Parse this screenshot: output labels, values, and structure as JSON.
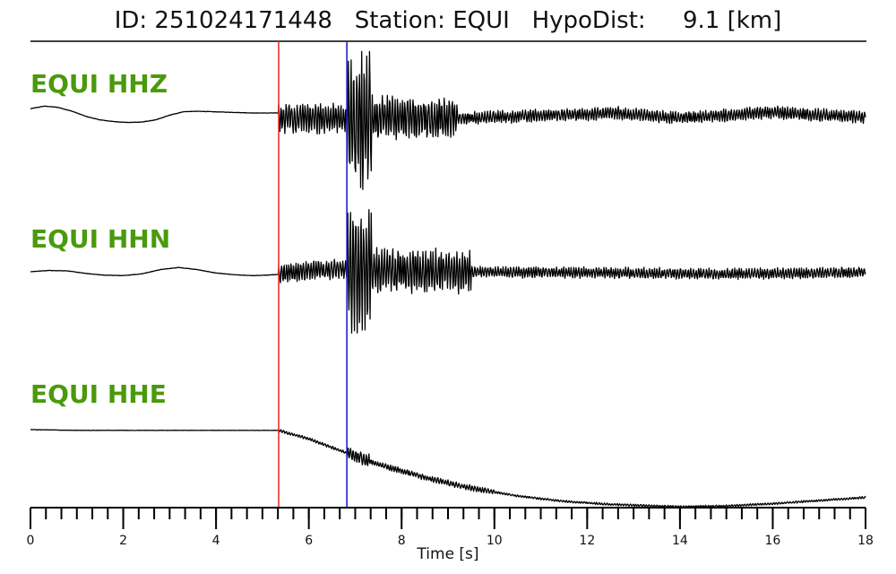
{
  "header": {
    "title": "ID: 251024171448   Station: EQUI   HypoDist:     9.1 [km]"
  },
  "colors": {
    "label": "#4a9a0c",
    "trace": "#000000",
    "p_pick": "#e8322a",
    "s_pick": "#1f1fd6"
  },
  "chart_data": {
    "type": "line",
    "title": "ID: 251024171448   Station: EQUI   HypoDist:     9.1 [km]",
    "xlabel": "Time [s]",
    "xlim": [
      0,
      18
    ],
    "xticks_major": [
      0,
      2,
      4,
      6,
      8,
      10,
      12,
      14,
      16,
      18
    ],
    "xtick_minor_step": 0.333,
    "picks": [
      {
        "phase": "P",
        "time": 5.35,
        "color": "#e8322a"
      },
      {
        "phase": "S",
        "time": 6.82,
        "color": "#1f1fd6"
      }
    ],
    "series": [
      {
        "name": "EQUI HHZ",
        "x": [
          0.0,
          0.3,
          0.6,
          0.9,
          1.2,
          1.5,
          1.8,
          2.1,
          2.4,
          2.7,
          3.0,
          3.3,
          3.6,
          3.9,
          4.2,
          4.5,
          4.8,
          5.1,
          5.35
        ],
        "y": [
          0.1,
          0.16,
          0.13,
          0.04,
          -0.08,
          -0.16,
          -0.2,
          -0.22,
          -0.21,
          -0.16,
          -0.05,
          0.03,
          0.04,
          0.03,
          0.02,
          0.01,
          0.0,
          0.0,
          0.0
        ],
        "noise_before": 0.004,
        "segments": [
          {
            "t0": 5.35,
            "t1": 6.82,
            "amp": 0.38
          },
          {
            "t0": 6.82,
            "t1": 7.35,
            "amp": 1.75
          },
          {
            "t0": 7.35,
            "t1": 9.2,
            "amp": 0.55
          },
          {
            "t0": 9.2,
            "t1": 18.0,
            "amp": 0.16
          }
        ],
        "trend": [
          [
            9.2,
            -0.12
          ],
          [
            11.5,
            -0.05
          ],
          [
            12.6,
            0.0
          ],
          [
            14.0,
            -0.12
          ],
          [
            16.0,
            0.02
          ],
          [
            17.0,
            -0.05
          ],
          [
            18.0,
            -0.1
          ]
        ]
      },
      {
        "name": "EQUI HHN",
        "x": [
          0.0,
          0.4,
          0.8,
          1.2,
          1.6,
          2.0,
          2.4,
          2.8,
          3.2,
          3.6,
          4.0,
          4.4,
          4.8,
          5.1,
          5.35
        ],
        "y": [
          0.0,
          0.03,
          0.02,
          -0.04,
          -0.08,
          -0.09,
          -0.05,
          0.05,
          0.1,
          0.05,
          -0.03,
          -0.07,
          -0.09,
          -0.08,
          -0.06
        ],
        "noise_before": 0.004,
        "segments": [
          {
            "t0": 5.35,
            "t1": 6.82,
            "amp": 0.24
          },
          {
            "t0": 6.82,
            "t1": 7.35,
            "amp": 1.6
          },
          {
            "t0": 7.35,
            "t1": 9.5,
            "amp": 0.55
          },
          {
            "t0": 9.5,
            "t1": 18.0,
            "amp": 0.14
          }
        ],
        "trend": [
          [
            5.35,
            -0.05
          ],
          [
            6.5,
            0.06
          ],
          [
            9.0,
            0.0
          ],
          [
            12.0,
            -0.02
          ],
          [
            15.0,
            -0.05
          ],
          [
            18.0,
            -0.02
          ]
        ]
      },
      {
        "name": "EQUI HHE",
        "x": [
          0.0,
          1.0,
          2.0,
          3.0,
          4.0,
          5.0,
          5.35,
          6.0,
          6.8,
          7.5,
          8.5,
          9.5,
          10.5,
          11.5,
          12.5,
          13.5,
          14.0,
          15.0,
          16.0,
          17.0,
          18.0
        ],
        "y": [
          0.0,
          -0.01,
          -0.01,
          -0.01,
          -0.01,
          -0.01,
          -0.01,
          -0.12,
          -0.3,
          -0.45,
          -0.62,
          -0.76,
          -0.86,
          -0.93,
          -0.97,
          -0.99,
          -1.0,
          -0.99,
          -0.96,
          -0.92,
          -0.88
        ],
        "noise_before": 0.002,
        "segments": [
          {
            "t0": 5.35,
            "t1": 6.82,
            "amp": 0.02
          },
          {
            "t0": 6.82,
            "t1": 7.3,
            "amp": 0.1
          },
          {
            "t0": 7.3,
            "t1": 10.0,
            "amp": 0.04
          },
          {
            "t0": 10.0,
            "t1": 18.0,
            "amp": 0.015
          }
        ],
        "trend": []
      }
    ]
  }
}
